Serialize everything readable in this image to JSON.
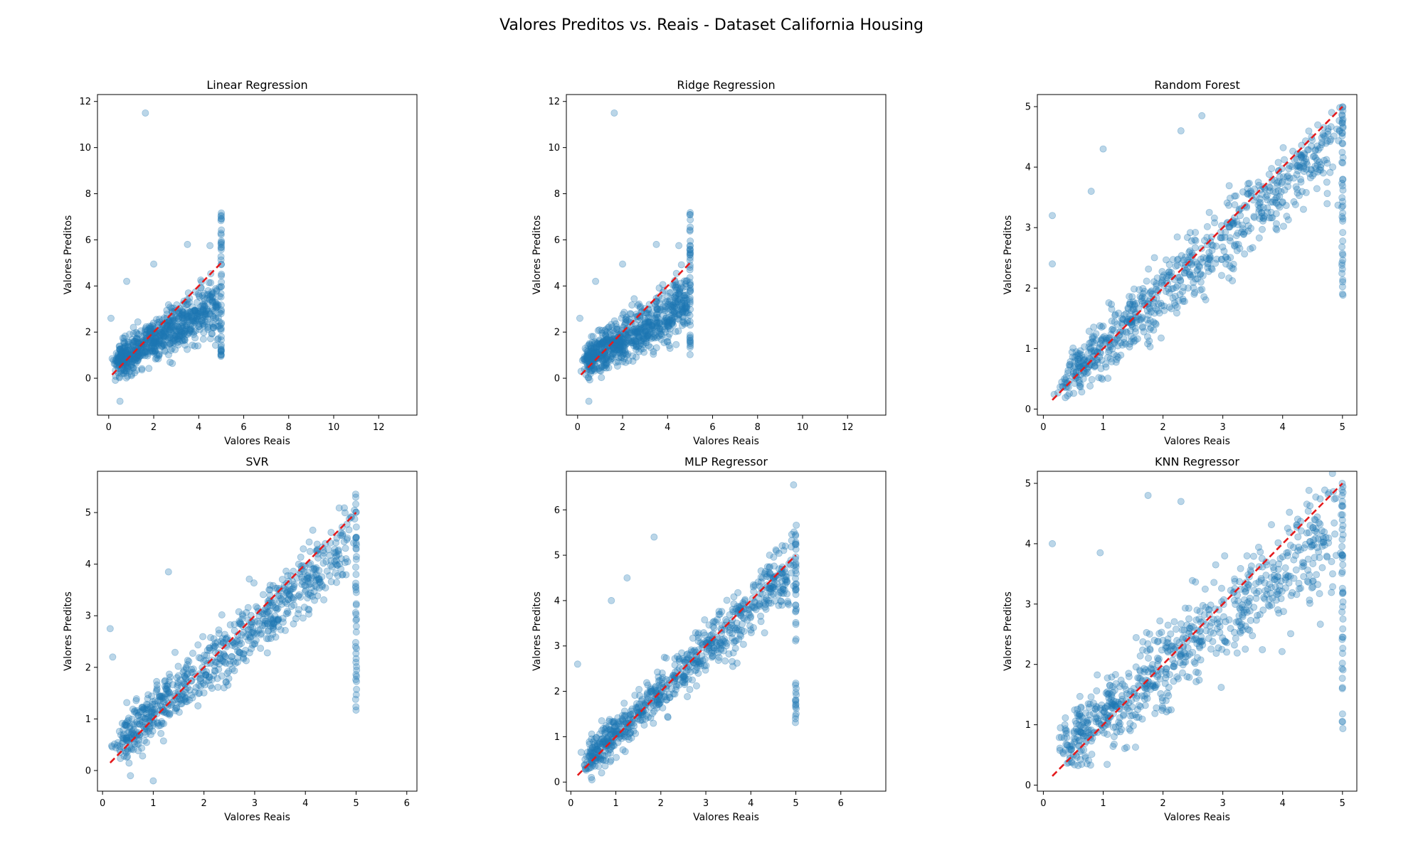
{
  "figure": {
    "suptitle": "Valores Preditos vs. Reais - Dataset California Housing"
  },
  "colors": {
    "points": "#1f77b4",
    "reference_line": "#e41a1c"
  },
  "chart_data": [
    {
      "type": "scatter",
      "title": "Linear Regression",
      "xlabel": "Valores Reais",
      "ylabel": "Valores Preditos",
      "xlim": [
        -0.5,
        13.7
      ],
      "ylim": [
        -1.6,
        12.3
      ],
      "xticks": [
        0,
        2,
        4,
        6,
        8,
        10,
        12
      ],
      "yticks": [
        0,
        2,
        4,
        6,
        8,
        10,
        12
      ],
      "reference_line": {
        "from": [
          0.15,
          0.15
        ],
        "to": [
          5.0,
          5.0
        ]
      },
      "distribution": {
        "n_points": 800,
        "center_slope": 0.55,
        "center_intercept": 0.55,
        "spread": 0.62,
        "cap_at": 5.0,
        "cap_fraction": 0.06,
        "cap_range": [
          0.8,
          7.2
        ]
      },
      "outliers": [
        {
          "x": 1.63,
          "y": 11.5
        },
        {
          "x": 0.8,
          "y": 4.2
        },
        {
          "x": 2.0,
          "y": 4.95
        },
        {
          "x": 4.5,
          "y": 5.75
        },
        {
          "x": 3.5,
          "y": 5.8
        },
        {
          "x": 0.5,
          "y": -1.0
        },
        {
          "x": 0.1,
          "y": 2.6
        }
      ],
      "grid": false
    },
    {
      "type": "scatter",
      "title": "Ridge Regression",
      "xlabel": "Valores Reais",
      "ylabel": "Valores Preditos",
      "xlim": [
        -0.5,
        13.7
      ],
      "ylim": [
        -1.6,
        12.3
      ],
      "xticks": [
        0,
        2,
        4,
        6,
        8,
        10,
        12
      ],
      "yticks": [
        0,
        2,
        4,
        6,
        8,
        10,
        12
      ],
      "reference_line": {
        "from": [
          0.15,
          0.15
        ],
        "to": [
          5.0,
          5.0
        ]
      },
      "distribution": {
        "n_points": 800,
        "center_slope": 0.55,
        "center_intercept": 0.55,
        "spread": 0.62,
        "cap_at": 5.0,
        "cap_fraction": 0.06,
        "cap_range": [
          0.8,
          7.2
        ]
      },
      "outliers": [
        {
          "x": 1.63,
          "y": 11.5
        },
        {
          "x": 0.8,
          "y": 4.2
        },
        {
          "x": 2.0,
          "y": 4.95
        },
        {
          "x": 4.5,
          "y": 5.75
        },
        {
          "x": 3.5,
          "y": 5.8
        },
        {
          "x": 0.5,
          "y": -1.0
        },
        {
          "x": 0.1,
          "y": 2.6
        }
      ],
      "grid": false
    },
    {
      "type": "scatter",
      "title": "Random Forest",
      "xlabel": "Valores Reais",
      "ylabel": "Valores Preditos",
      "xlim": [
        -0.1,
        5.24
      ],
      "ylim": [
        -0.1,
        5.2
      ],
      "xticks": [
        0,
        1,
        2,
        3,
        4,
        5
      ],
      "yticks": [
        0,
        1,
        2,
        3,
        4,
        5
      ],
      "reference_line": {
        "from": [
          0.15,
          0.15
        ],
        "to": [
          5.0,
          5.0
        ]
      },
      "distribution": {
        "n_points": 800,
        "center_slope": 0.88,
        "center_intercept": 0.15,
        "spread": 0.35,
        "cap_at": 5.0,
        "cap_fraction": 0.06,
        "cap_range": [
          1.7,
          5.0
        ]
      },
      "outliers": [
        {
          "x": 0.15,
          "y": 3.2
        },
        {
          "x": 0.15,
          "y": 2.4
        },
        {
          "x": 0.8,
          "y": 3.6
        },
        {
          "x": 1.0,
          "y": 4.3
        },
        {
          "x": 2.3,
          "y": 4.6
        },
        {
          "x": 2.65,
          "y": 4.85
        }
      ],
      "grid": false
    },
    {
      "type": "scatter",
      "title": "SVR",
      "xlabel": "Valores Reais",
      "ylabel": "Valores Preditos",
      "xlim": [
        -0.1,
        6.2
      ],
      "ylim": [
        -0.4,
        5.8
      ],
      "xticks": [
        0,
        1,
        2,
        3,
        4,
        5,
        6
      ],
      "yticks": [
        0,
        1,
        2,
        3,
        4,
        5
      ],
      "reference_line": {
        "from": [
          0.15,
          0.15
        ],
        "to": [
          5.0,
          5.0
        ]
      },
      "distribution": {
        "n_points": 800,
        "center_slope": 0.85,
        "center_intercept": 0.25,
        "spread": 0.38,
        "cap_at": 5.0,
        "cap_fraction": 0.06,
        "cap_range": [
          0.95,
          5.45
        ]
      },
      "outliers": [
        {
          "x": 0.15,
          "y": 2.75
        },
        {
          "x": 0.2,
          "y": 2.2
        },
        {
          "x": 1.3,
          "y": 3.85
        },
        {
          "x": 1.0,
          "y": -0.2
        },
        {
          "x": 0.55,
          "y": -0.1
        }
      ],
      "grid": false
    },
    {
      "type": "scatter",
      "title": "MLP Regressor",
      "xlabel": "Valores Reais",
      "ylabel": "Valores Preditos",
      "xlim": [
        -0.1,
        7.0
      ],
      "ylim": [
        -0.2,
        6.85
      ],
      "xticks": [
        0,
        1,
        2,
        3,
        4,
        5,
        6
      ],
      "yticks": [
        0,
        1,
        2,
        3,
        4,
        5,
        6
      ],
      "reference_line": {
        "from": [
          0.15,
          0.15
        ],
        "to": [
          5.0,
          5.0
        ]
      },
      "distribution": {
        "n_points": 800,
        "center_slope": 0.92,
        "center_intercept": 0.15,
        "spread": 0.35,
        "cap_at": 5.0,
        "cap_fraction": 0.06,
        "cap_range": [
          1.3,
          5.7
        ]
      },
      "outliers": [
        {
          "x": 4.95,
          "y": 6.55
        },
        {
          "x": 1.85,
          "y": 5.4
        },
        {
          "x": 0.9,
          "y": 4.0
        },
        {
          "x": 1.25,
          "y": 4.5
        },
        {
          "x": 0.15,
          "y": 2.6
        }
      ],
      "grid": false
    },
    {
      "type": "scatter",
      "title": "KNN Regressor",
      "xlabel": "Valores Reais",
      "ylabel": "Valores Preditos",
      "xlim": [
        -0.1,
        5.24
      ],
      "ylim": [
        -0.1,
        5.2
      ],
      "xticks": [
        0,
        1,
        2,
        3,
        4,
        5
      ],
      "yticks": [
        0,
        1,
        2,
        3,
        4,
        5
      ],
      "reference_line": {
        "from": [
          0.15,
          0.15
        ],
        "to": [
          5.0,
          5.0
        ]
      },
      "distribution": {
        "n_points": 800,
        "center_slope": 0.8,
        "center_intercept": 0.35,
        "spread": 0.45,
        "cap_at": 5.0,
        "cap_fraction": 0.06,
        "cap_range": [
          0.9,
          5.0
        ]
      },
      "outliers": [
        {
          "x": 0.15,
          "y": 4.0
        },
        {
          "x": 0.95,
          "y": 3.85
        },
        {
          "x": 1.75,
          "y": 4.8
        },
        {
          "x": 2.3,
          "y": 4.7
        }
      ],
      "grid": false
    }
  ]
}
